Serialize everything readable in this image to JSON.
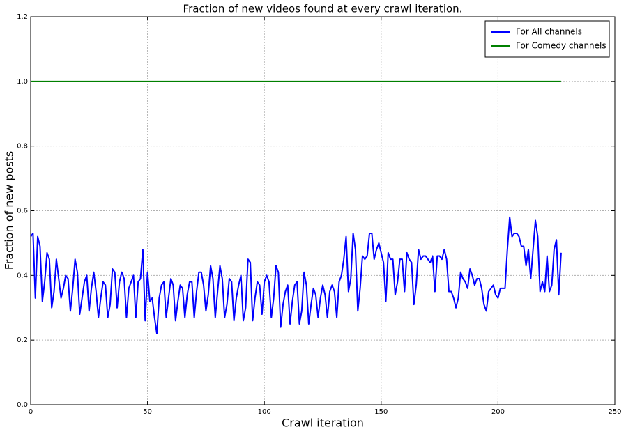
{
  "chart_data": {
    "type": "line",
    "title": "Fraction of new videos found at every crawl iteration.",
    "x_label": "Crawl iteration",
    "y_label": "Fraction of new posts",
    "x": [
      0,
      1,
      2,
      3,
      4,
      5,
      6,
      7,
      8,
      9,
      10,
      11,
      12,
      13,
      14,
      15,
      16,
      17,
      18,
      19,
      20,
      21,
      22,
      23,
      24,
      25,
      26,
      27,
      28,
      29,
      30,
      31,
      32,
      33,
      34,
      35,
      36,
      37,
      38,
      39,
      40,
      41,
      42,
      43,
      44,
      45,
      46,
      47,
      48,
      49,
      50,
      51,
      52,
      53,
      54,
      55,
      56,
      57,
      58,
      59,
      60,
      61,
      62,
      63,
      64,
      65,
      66,
      67,
      68,
      69,
      70,
      71,
      72,
      73,
      74,
      75,
      76,
      77,
      78,
      79,
      80,
      81,
      82,
      83,
      84,
      85,
      86,
      87,
      88,
      89,
      90,
      91,
      92,
      93,
      94,
      95,
      96,
      97,
      98,
      99,
      100,
      101,
      102,
      103,
      104,
      105,
      106,
      107,
      108,
      109,
      110,
      111,
      112,
      113,
      114,
      115,
      116,
      117,
      118,
      119,
      120,
      121,
      122,
      123,
      124,
      125,
      126,
      127,
      128,
      129,
      130,
      131,
      132,
      133,
      134,
      135,
      136,
      137,
      138,
      139,
      140,
      141,
      142,
      143,
      144,
      145,
      146,
      147,
      148,
      149,
      150,
      151,
      152,
      153,
      154,
      155,
      156,
      157,
      158,
      159,
      160,
      161,
      162,
      163,
      164,
      165,
      166,
      167,
      168,
      169,
      170,
      171,
      172,
      173,
      174,
      175,
      176,
      177,
      178,
      179,
      180,
      181,
      182,
      183,
      184,
      185,
      186,
      187,
      188,
      189,
      190,
      191,
      192,
      193,
      194,
      195,
      196,
      197,
      198,
      199,
      200,
      201,
      202,
      203,
      204,
      205,
      206,
      207,
      208,
      209,
      210,
      211,
      212,
      213,
      214,
      215,
      216,
      217,
      218,
      219,
      220,
      221,
      222,
      223,
      224,
      225,
      226,
      227
    ],
    "series": [
      {
        "name": "For All channels",
        "color": "#0000ff",
        "values": [
          0.52,
          0.53,
          0.33,
          0.52,
          0.49,
          0.32,
          0.38,
          0.47,
          0.45,
          0.3,
          0.35,
          0.45,
          0.39,
          0.33,
          0.36,
          0.4,
          0.39,
          0.29,
          0.36,
          0.45,
          0.41,
          0.28,
          0.33,
          0.38,
          0.4,
          0.29,
          0.36,
          0.41,
          0.35,
          0.27,
          0.33,
          0.38,
          0.37,
          0.27,
          0.31,
          0.42,
          0.41,
          0.3,
          0.38,
          0.41,
          0.39,
          0.27,
          0.36,
          0.38,
          0.4,
          0.27,
          0.38,
          0.39,
          0.48,
          0.26,
          0.41,
          0.32,
          0.33,
          0.27,
          0.22,
          0.33,
          0.37,
          0.38,
          0.27,
          0.33,
          0.39,
          0.37,
          0.26,
          0.32,
          0.37,
          0.36,
          0.27,
          0.34,
          0.38,
          0.38,
          0.27,
          0.35,
          0.41,
          0.41,
          0.37,
          0.29,
          0.34,
          0.43,
          0.39,
          0.27,
          0.35,
          0.43,
          0.39,
          0.27,
          0.31,
          0.39,
          0.38,
          0.26,
          0.33,
          0.37,
          0.4,
          0.26,
          0.3,
          0.45,
          0.44,
          0.26,
          0.33,
          0.38,
          0.37,
          0.28,
          0.38,
          0.4,
          0.38,
          0.27,
          0.33,
          0.43,
          0.41,
          0.24,
          0.31,
          0.35,
          0.37,
          0.25,
          0.32,
          0.37,
          0.38,
          0.25,
          0.29,
          0.41,
          0.37,
          0.25,
          0.31,
          0.36,
          0.34,
          0.27,
          0.33,
          0.37,
          0.34,
          0.27,
          0.35,
          0.37,
          0.35,
          0.27,
          0.38,
          0.4,
          0.45,
          0.52,
          0.35,
          0.39,
          0.53,
          0.48,
          0.29,
          0.36,
          0.46,
          0.45,
          0.46,
          0.53,
          0.53,
          0.45,
          0.48,
          0.5,
          0.47,
          0.44,
          0.32,
          0.47,
          0.45,
          0.45,
          0.34,
          0.38,
          0.45,
          0.45,
          0.35,
          0.47,
          0.45,
          0.44,
          0.31,
          0.37,
          0.48,
          0.45,
          0.46,
          0.46,
          0.45,
          0.44,
          0.46,
          0.35,
          0.46,
          0.46,
          0.45,
          0.48,
          0.45,
          0.35,
          0.35,
          0.33,
          0.3,
          0.33,
          0.41,
          0.39,
          0.38,
          0.36,
          0.42,
          0.4,
          0.37,
          0.39,
          0.39,
          0.36,
          0.31,
          0.29,
          0.35,
          0.36,
          0.37,
          0.34,
          0.33,
          0.36,
          0.36,
          0.36,
          0.48,
          0.58,
          0.52,
          0.53,
          0.53,
          0.52,
          0.49,
          0.49,
          0.43,
          0.48,
          0.39,
          0.48,
          0.57,
          0.52,
          0.35,
          0.38,
          0.35,
          0.46,
          0.35,
          0.37,
          0.48,
          0.51,
          0.34,
          0.47
        ]
      },
      {
        "name": "For Comedy channels",
        "color": "#008000",
        "values": [
          1,
          1,
          1,
          1,
          1,
          1,
          1,
          1,
          1,
          1,
          1,
          1,
          1,
          1,
          1,
          1,
          1,
          1,
          1,
          1,
          1,
          1,
          1,
          1,
          1,
          1,
          1,
          1,
          1,
          1,
          1,
          1,
          1,
          1,
          1,
          1,
          1,
          1,
          1,
          1,
          1,
          1,
          1,
          1,
          1,
          1,
          1,
          1,
          1,
          1,
          1,
          1,
          1,
          1,
          1,
          1,
          1,
          1,
          1,
          1,
          1,
          1,
          1,
          1,
          1,
          1,
          1,
          1,
          1,
          1,
          1,
          1,
          1,
          1,
          1,
          1,
          1,
          1,
          1,
          1,
          1,
          1,
          1,
          1,
          1,
          1,
          1,
          1,
          1,
          1,
          1,
          1,
          1,
          1,
          1,
          1,
          1,
          1,
          1,
          1,
          1,
          1,
          1,
          1,
          1,
          1,
          1,
          1,
          1,
          1,
          1,
          1,
          1,
          1,
          1,
          1,
          1,
          1,
          1,
          1,
          1,
          1,
          1,
          1,
          1,
          1,
          1,
          1,
          1,
          1,
          1,
          1,
          1,
          1,
          1,
          1,
          1,
          1,
          1,
          1,
          1,
          1,
          1,
          1,
          1,
          1,
          1,
          1,
          1,
          1,
          1,
          1,
          1,
          1,
          1,
          1,
          1,
          1,
          1,
          1,
          1,
          1,
          1,
          1,
          1,
          1,
          1,
          1,
          1,
          1,
          1,
          1,
          1,
          1,
          1,
          1,
          1,
          1,
          1,
          1,
          1,
          1,
          1,
          1,
          1,
          1,
          1,
          1,
          1,
          1,
          1,
          1,
          1,
          1,
          1,
          1,
          1,
          1,
          1,
          1,
          1,
          1,
          1,
          1,
          1,
          1,
          1,
          1,
          1,
          1,
          1,
          1,
          1,
          1,
          1,
          1,
          1,
          1,
          1,
          1,
          1,
          1,
          1,
          1,
          1,
          1,
          1,
          1
        ]
      }
    ],
    "xlim": [
      0,
      250
    ],
    "xticks": [
      0,
      50,
      100,
      150,
      200,
      250
    ],
    "ylim": [
      0,
      1.2
    ],
    "yticks": [
      {
        "value": 0,
        "label": "0.0"
      },
      0.2,
      0.4,
      0.6,
      0.8,
      {
        "value": 1,
        "label": "1.0"
      },
      1.2
    ],
    "grid": true,
    "legend": "upper right"
  }
}
